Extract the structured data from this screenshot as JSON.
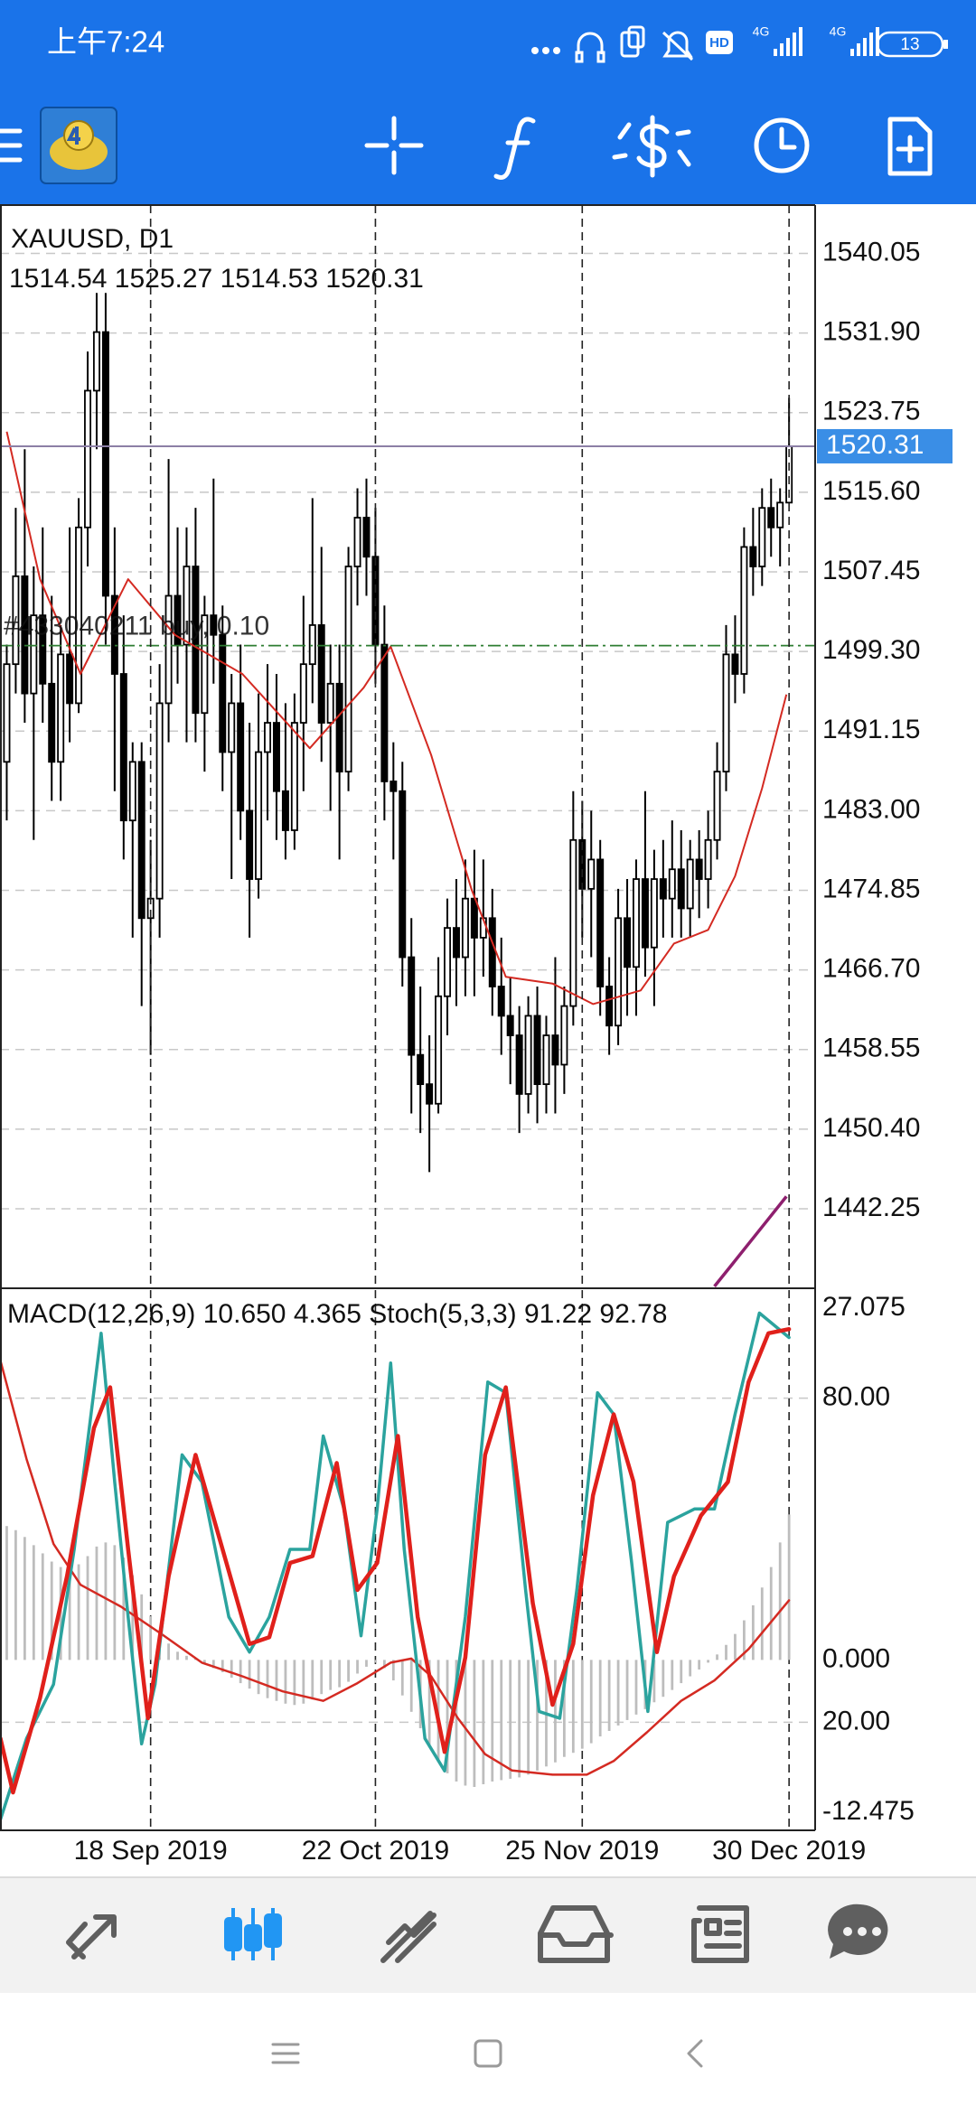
{
  "status_bar": {
    "time": "上午7:24",
    "network": [
      "HD",
      "4G",
      "4G"
    ],
    "battery": "13"
  },
  "chart_data": [
    {
      "type": "candlestick",
      "title": "XAUUSD, D1",
      "xlim": [
        -0.75,
        89.9
      ],
      "ylim": [
        1434.2,
        1545.0
      ],
      "grid": true,
      "up_color": "#ffffff",
      "down_color": "#000000",
      "price_line_color": "#8c7fa6",
      "price_label_color": "#3a8ee6",
      "yticks": [
        1540.05,
        {
          "value": 1531.9,
          "label": "1531.90"
        },
        1523.75,
        {
          "value": 1515.6,
          "label": "1515.60"
        },
        1507.45,
        {
          "value": 1499.3,
          "label": "1499.30"
        },
        1491.15,
        {
          "value": 1483,
          "label": "1483.00"
        },
        1474.85,
        {
          "value": 1466.7,
          "label": "1466.70"
        },
        1458.55,
        {
          "value": 1450.4,
          "label": "1450.40"
        },
        1442.25
      ],
      "open": [
        1488,
        1498,
        1507,
        1495,
        1503,
        1496,
        1488,
        1499,
        1494,
        1512,
        1526,
        1532,
        1505,
        1497,
        1482,
        1488,
        1472,
        1474,
        1494,
        1505,
        1500,
        1508,
        1493,
        1503,
        1501,
        1489,
        1494,
        1483,
        1476,
        1489,
        1492,
        1485,
        1481,
        1492,
        1498,
        1502,
        1492,
        1496,
        1487,
        1508,
        1513,
        1509,
        1500,
        1486,
        1485,
        1468,
        1458,
        1455,
        1453,
        1464,
        1471,
        1468,
        1474,
        1470,
        1472,
        1465,
        1462,
        1460,
        1454,
        1462,
        1455,
        1460,
        1457,
        1463,
        1480,
        1475,
        1478,
        1465,
        1461,
        1472,
        1467,
        1476,
        1469,
        1476,
        1474,
        1477,
        1473,
        1478,
        1476,
        1480,
        1487,
        1499,
        1497,
        1510,
        1508,
        1514,
        1512,
        1514.54
      ],
      "high": [
        1500,
        1514,
        1520,
        1508,
        1512,
        1505,
        1502,
        1512,
        1515,
        1530,
        1536,
        1536,
        1512,
        1503,
        1490,
        1490,
        1480,
        1498,
        1519,
        1512,
        1512,
        1514,
        1505,
        1517,
        1504,
        1497,
        1500,
        1492,
        1495,
        1498,
        1497,
        1494,
        1495,
        1505,
        1515,
        1510,
        1500,
        1500,
        1510,
        1516,
        1517,
        1514,
        1504,
        1490,
        1488,
        1472,
        1465,
        1460,
        1468,
        1474,
        1476,
        1478,
        1479,
        1478,
        1475,
        1470,
        1466,
        1463,
        1464,
        1465,
        1462,
        1468,
        1465,
        1485,
        1484,
        1483,
        1480,
        1468,
        1475,
        1476,
        1478,
        1485,
        1479,
        1480,
        1482,
        1481,
        1480,
        1481,
        1483,
        1490,
        1502,
        1503,
        1512,
        1514,
        1516,
        1517,
        1516,
        1525.27
      ],
      "low": [
        1482,
        1495,
        1492,
        1480,
        1492,
        1484,
        1484,
        1490,
        1493,
        1508,
        1520,
        1500,
        1485,
        1478,
        1470,
        1463,
        1458,
        1470,
        1490,
        1496,
        1490,
        1490,
        1487,
        1496,
        1485,
        1476,
        1480,
        1470,
        1474,
        1482,
        1480,
        1478,
        1479,
        1485,
        1494,
        1488,
        1483,
        1478,
        1485,
        1504,
        1505,
        1496,
        1482,
        1478,
        1465,
        1452,
        1450,
        1446,
        1452,
        1460,
        1463,
        1464,
        1464,
        1466,
        1462,
        1458,
        1455,
        1450,
        1452,
        1451,
        1452,
        1452,
        1454,
        1461,
        1470,
        1468,
        1462,
        1458,
        1459,
        1462,
        1462,
        1466,
        1463,
        1470,
        1470,
        1470,
        1470,
        1472,
        1473,
        1478,
        1485,
        1494,
        1495,
        1505,
        1506,
        1509,
        1508,
        1514.53
      ],
      "close": [
        1498,
        1507,
        1495,
        1503,
        1496,
        1488,
        1499,
        1494,
        1512,
        1526,
        1532,
        1505,
        1497,
        1482,
        1488,
        1472,
        1474,
        1494,
        1505,
        1500,
        1508,
        1493,
        1503,
        1501,
        1489,
        1494,
        1483,
        1476,
        1489,
        1492,
        1485,
        1481,
        1492,
        1498,
        1502,
        1492,
        1496,
        1487,
        1508,
        1513,
        1509,
        1500,
        1486,
        1485,
        1468,
        1458,
        1455,
        1453,
        1464,
        1471,
        1468,
        1474,
        1470,
        1472,
        1465,
        1462,
        1460,
        1454,
        1462,
        1455,
        1460,
        1457,
        1463,
        1480,
        1475,
        1478,
        1465,
        1461,
        1472,
        1467,
        1476,
        1469,
        1476,
        1474,
        1477,
        1473,
        1478,
        1476,
        1480,
        1487,
        1499,
        1497,
        1510,
        1508,
        1514,
        1512,
        1514.54,
        1520.31
      ],
      "lines": [
        {
          "color": "#d42a22",
          "width": 2,
          "x": [
            0,
            3.7,
            8.2,
            13.5,
            18.7,
            26.2,
            33.7,
            39.7,
            42.7,
            47.2,
            51.7,
            55.5,
            60.7,
            65.2,
            70.5,
            74.2,
            78,
            81,
            84,
            86.7
          ],
          "values": [
            1521.8,
            1506.7,
            1497,
            1506.7,
            1501,
            1497,
            1489.4,
            1495.6,
            1499.8,
            1488.7,
            1474.9,
            1466,
            1465.3,
            1463.2,
            1464.6,
            1469.4,
            1470.8,
            1476.3,
            1485.3,
            1494.9
          ]
        },
        {
          "color": "#8e1f6e",
          "width": 3.5,
          "x": [
            78.7,
            80.7,
            82.7,
            84.7,
            86.7
          ],
          "values": [
            1434.3,
            1436.6,
            1438.9,
            1441.2,
            1443.5
          ]
        }
      ],
      "order": {
        "label": "#433040211 buy, 0.10",
        "value": 1499.9,
        "color": "#2e7d32"
      }
    },
    {
      "type": "indicator",
      "label": "MACD(12,26,9) 10.650 4.365 Stoch(5,3,3) 91.22 92.78",
      "xlim": [
        -0.75,
        89.9
      ],
      "xticks": [
        {
          "value": 16,
          "label": "18 Sep 2019"
        },
        {
          "value": 41,
          "label": "22 Oct 2019"
        },
        {
          "value": 64,
          "label": "25 Nov 2019"
        },
        {
          "value": 87,
          "label": "30 Dec 2019"
        }
      ],
      "ylim": [
        0,
        100
      ],
      "yticks": [
        {
          "value": 80,
          "label": "80.00"
        },
        {
          "value": 20,
          "label": "20.00"
        }
      ],
      "grid": true,
      "y2lim": [
        -12.475,
        27.075
      ],
      "y2ticks": [
        27.075,
        {
          "value": 0,
          "label": "0.000"
        },
        -12.475
      ],
      "series": [
        {
          "kind": "histogram",
          "axis": "y2",
          "color": "#bdbdbd",
          "values": [
            9.8,
            9.5,
            9.0,
            8.4,
            7.8,
            7.2,
            6.8,
            6.7,
            7.0,
            7.6,
            8.3,
            8.6,
            8.4,
            7.5,
            6.2,
            4.8,
            3.2,
            2.0,
            1.2,
            0.6,
            0.3,
            0.1,
            -0.3,
            -0.6,
            -0.9,
            -1.3,
            -1.7,
            -2.1,
            -2.5,
            -2.8,
            -3.0,
            -3.2,
            -3.3,
            -3.2,
            -2.9,
            -2.5,
            -2.2,
            -2.0,
            -1.6,
            -1.0,
            -0.5,
            -0.2,
            -0.6,
            -1.5,
            -2.6,
            -3.8,
            -5.0,
            -6.3,
            -7.4,
            -8.3,
            -8.9,
            -9.2,
            -9.3,
            -9.1,
            -8.9,
            -8.8,
            -8.7,
            -8.6,
            -8.4,
            -8.1,
            -7.8,
            -7.5,
            -7.1,
            -6.8,
            -6.5,
            -6.1,
            -5.6,
            -5.2,
            -4.8,
            -4.4,
            -4.0,
            -3.6,
            -3.1,
            -2.7,
            -2.2,
            -1.7,
            -1.2,
            -0.7,
            -0.2,
            0.4,
            1.1,
            1.9,
            2.9,
            4.0,
            5.3,
            6.8,
            8.6,
            10.65
          ]
        },
        {
          "kind": "line",
          "axis": "y2",
          "color": "#d42a22",
          "width": 2.5,
          "x": [
            -0.7,
            2.2,
            5.2,
            8.2,
            12.7,
            17.2,
            21.7,
            26.2,
            30.7,
            35.2,
            39,
            42.7,
            45,
            47.2,
            50.2,
            53.2,
            56.2,
            60.7,
            64.5,
            67.5,
            71.2,
            75,
            78.7,
            82.5,
            87
          ],
          "values": [
            21.9,
            14.7,
            8.5,
            5.5,
            3.9,
            1.9,
            -0.2,
            -1.2,
            -2.3,
            -3.0,
            -1.7,
            -0.2,
            0.1,
            -1.2,
            -4.3,
            -6.9,
            -8.1,
            -8.4,
            -8.4,
            -7.4,
            -5.3,
            -3.0,
            -1.5,
            0.8,
            4.365
          ]
        },
        {
          "kind": "line",
          "color": "#2ba39e",
          "width": 3.5,
          "x": [
            -0.7,
            2.2,
            5.2,
            7.5,
            10.5,
            12,
            13.5,
            15,
            16.5,
            19.5,
            21.7,
            24.7,
            27,
            29.2,
            31.5,
            33.7,
            35.2,
            37.5,
            39.4,
            41.2,
            42.7,
            44.2,
            46.5,
            48.7,
            51,
            53.5,
            55.5,
            57.7,
            59.2,
            61.5,
            63.4,
            65.7,
            67.5,
            69.5,
            71.3,
            73.5,
            76.5,
            78.7,
            81,
            83.7,
            87
          ],
          "values": [
            2,
            17,
            27,
            52,
            92,
            64.5,
            39.5,
            16,
            27,
            69.5,
            64.5,
            39.5,
            33,
            39.5,
            52,
            52,
            73,
            59.5,
            36,
            59.5,
            86.5,
            52,
            17,
            11,
            39.5,
            83,
            81,
            44.5,
            22,
            20.75,
            44.5,
            81,
            77,
            49.5,
            22,
            57,
            59.5,
            59.5,
            77,
            95.75,
            91.22
          ]
        },
        {
          "kind": "line",
          "color": "#e0201b",
          "width": 4.5,
          "x": [
            -0.7,
            0.7,
            3.7,
            6.7,
            9.7,
            11.5,
            13.5,
            15.7,
            18,
            21,
            24,
            27,
            29.2,
            31.5,
            34,
            36.7,
            39,
            41.2,
            43.5,
            45.7,
            48.7,
            51,
            53.2,
            55.5,
            58.5,
            60.7,
            63,
            65.2,
            67.5,
            69.7,
            72.3,
            74.2,
            77.2,
            80.2,
            82.5,
            84.7,
            87
          ],
          "values": [
            17,
            7,
            24.5,
            47,
            74.5,
            82,
            52,
            20.75,
            47,
            69.5,
            52,
            34.5,
            35.75,
            49.5,
            50.75,
            68,
            44.5,
            49.5,
            73,
            39.5,
            14.5,
            32,
            69.5,
            82,
            42,
            23.25,
            34.5,
            62,
            77,
            64.5,
            33,
            47,
            58.25,
            64.5,
            83,
            92,
            92.78
          ]
        }
      ]
    }
  ]
}
